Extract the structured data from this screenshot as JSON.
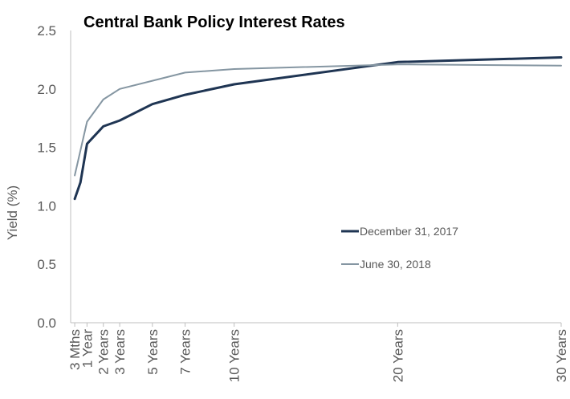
{
  "chart_data": {
    "type": "line",
    "title": "Central Bank Policy Interest Rates",
    "ylabel": "Yield (%)",
    "xlabel": "",
    "ylim": [
      0,
      2.5
    ],
    "yticks": [
      "0.0",
      "0.5",
      "1.0",
      "1.5",
      "2.0",
      "2.5"
    ],
    "x_axis_scale": "years to maturity",
    "x": [
      0.25,
      1,
      2,
      3,
      5,
      7,
      10,
      20,
      30
    ],
    "x_tick_labels": [
      "3 Mths",
      "1 Year",
      "2 Years",
      "3 Years",
      "5 Years",
      "7 Years",
      "10 Years",
      "20 Years",
      "30 Years"
    ],
    "series": [
      {
        "name": "December 31, 2017",
        "color": "#1f3553",
        "x": [
          0.25,
          0.6,
          1,
          2,
          3,
          5,
          7,
          10,
          20,
          30
        ],
        "values": [
          1.06,
          1.2,
          1.53,
          1.68,
          1.73,
          1.87,
          1.95,
          2.04,
          2.23,
          2.27
        ]
      },
      {
        "name": "June 30, 2018",
        "color": "#8596a2",
        "x": [
          0.25,
          1,
          2,
          3,
          5,
          7,
          10,
          20,
          30
        ],
        "values": [
          1.26,
          1.72,
          1.91,
          2.0,
          2.07,
          2.14,
          2.17,
          2.21,
          2.2
        ]
      }
    ],
    "grid": false,
    "legend": "center-right"
  }
}
